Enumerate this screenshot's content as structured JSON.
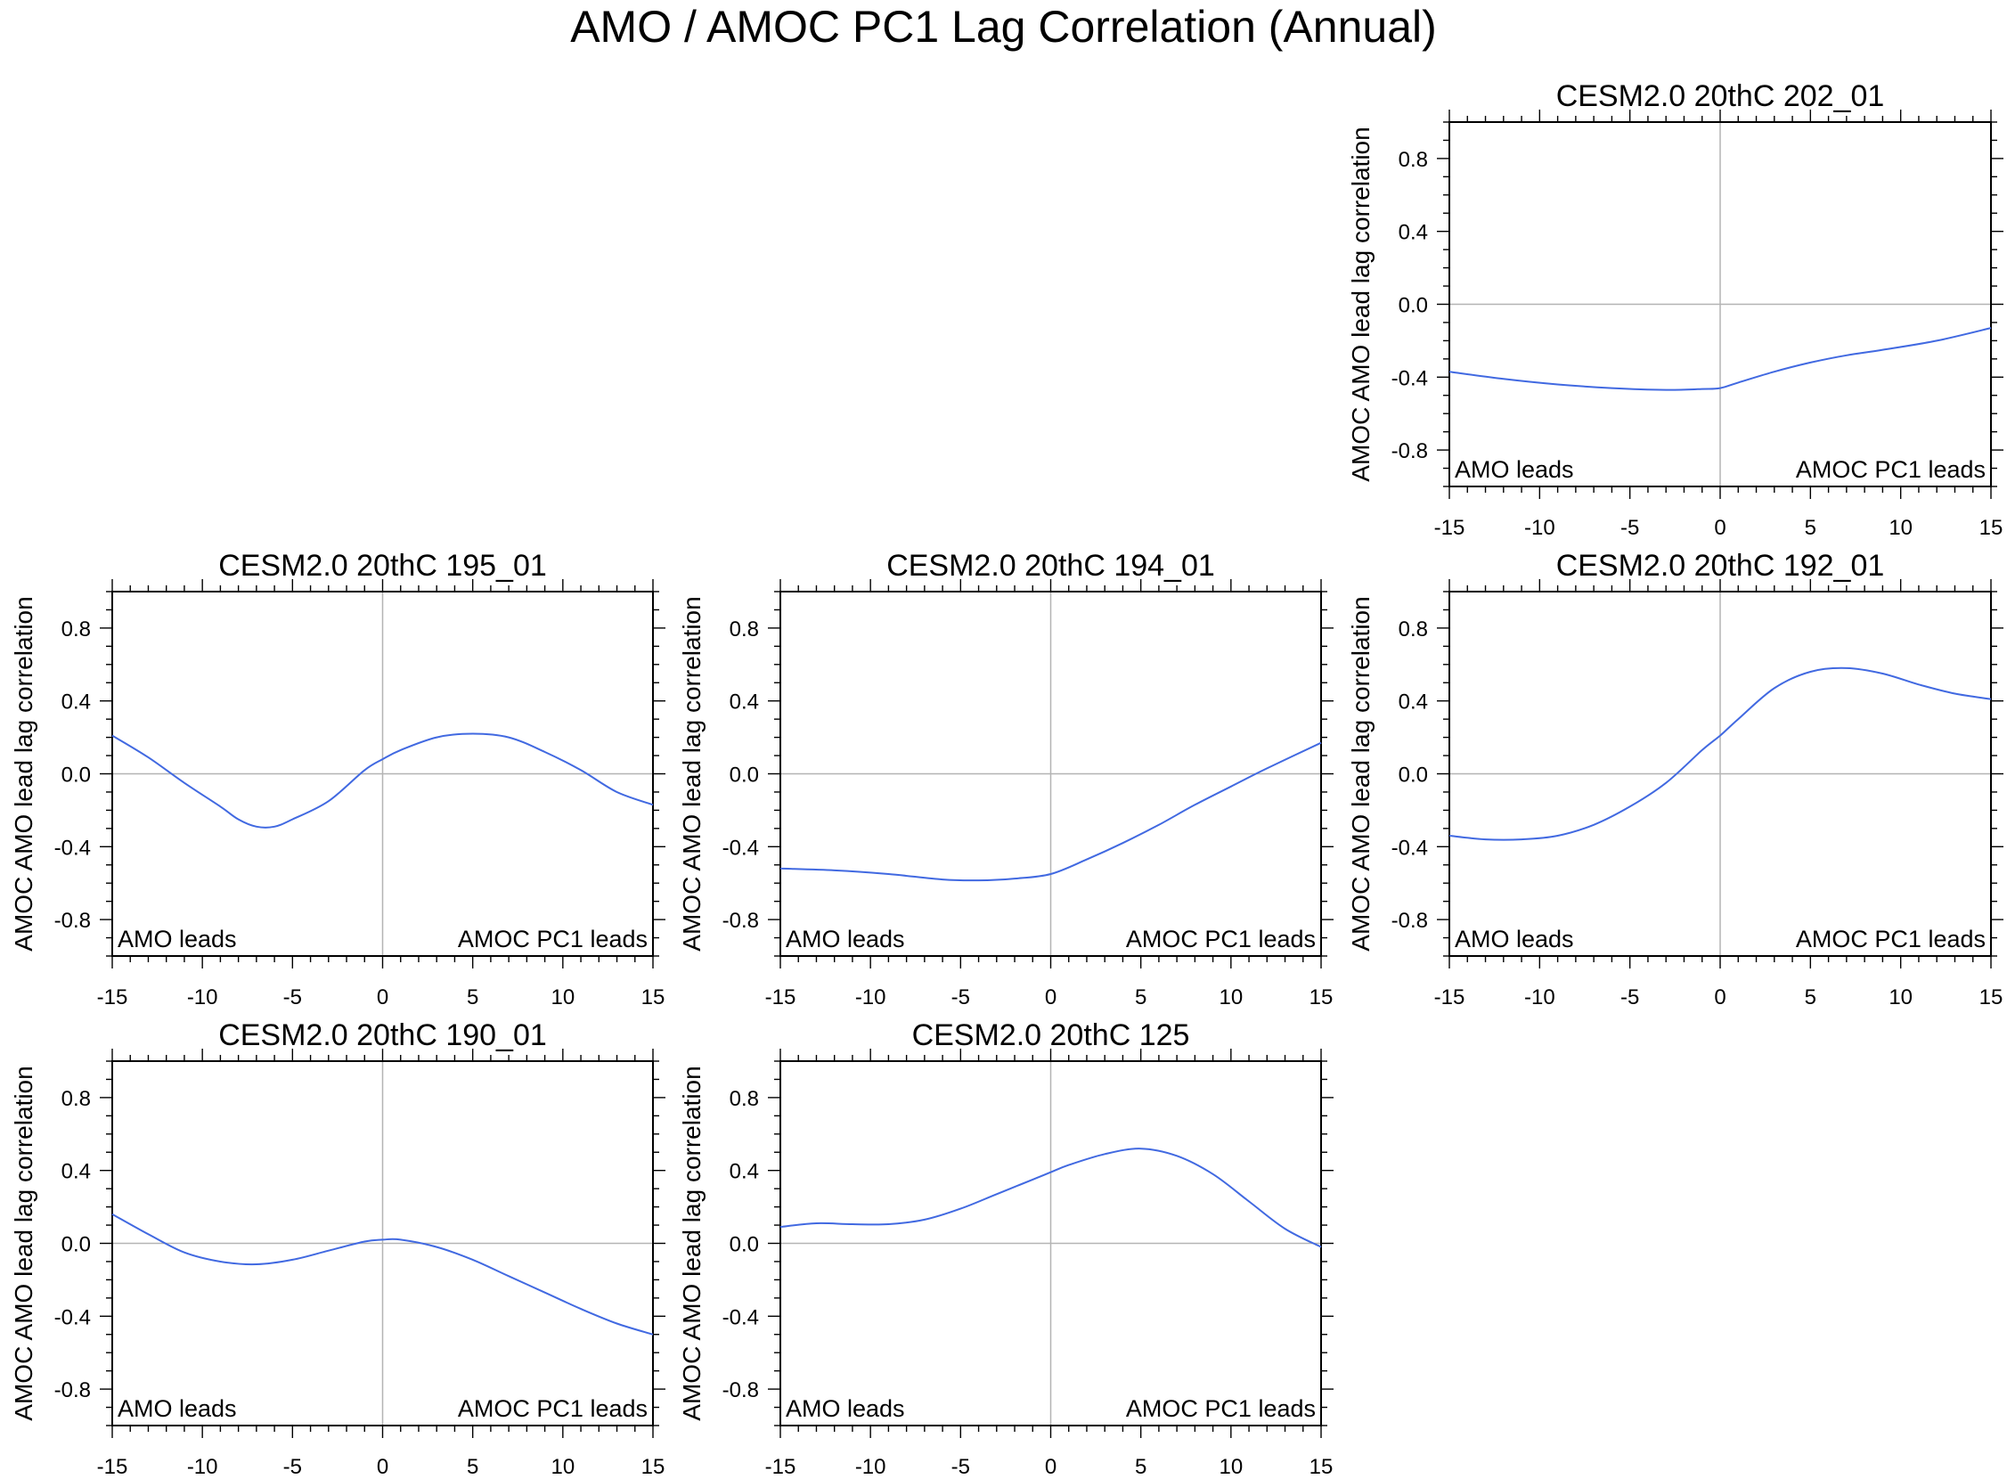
{
  "figure": {
    "title": "AMO / AMOC PC1 Lag Correlation (Annual)"
  },
  "colors": {
    "line": "#4169e1",
    "reference": "#b4b4b4",
    "frame": "#000000"
  },
  "chart_data": [
    {
      "type": "line",
      "title": "CESM2.0 20thC 202_01",
      "xlabel": "",
      "ylabel": "AMOC AMO lead lag correlation",
      "xlim": [
        -15,
        15
      ],
      "ylim": [
        -1,
        1
      ],
      "xticks": [
        "-15",
        "-10",
        "-5",
        "0",
        "5",
        "10",
        "15"
      ],
      "yticks": [
        "0.8",
        "0.4",
        "0.0",
        "-0.4",
        "-0.8"
      ],
      "annotation_left": "AMO leads",
      "annotation_right": "AMOC PC1 leads",
      "x": [
        -15,
        -12,
        -9,
        -6,
        -3,
        -1,
        0,
        1,
        3,
        5,
        7,
        9,
        12,
        15
      ],
      "values": [
        -0.37,
        -0.41,
        -0.44,
        -0.46,
        -0.47,
        -0.465,
        -0.46,
        -0.43,
        -0.37,
        -0.32,
        -0.28,
        -0.25,
        -0.2,
        -0.13
      ]
    },
    {
      "type": "line",
      "title": "CESM2.0 20thC 195_01",
      "xlabel": "",
      "ylabel": "AMOC AMO lead lag correlation",
      "xlim": [
        -15,
        15
      ],
      "ylim": [
        -1,
        1
      ],
      "xticks": [
        "-15",
        "-10",
        "-5",
        "0",
        "5",
        "10",
        "15"
      ],
      "yticks": [
        "0.8",
        "0.4",
        "0.0",
        "-0.4",
        "-0.8"
      ],
      "annotation_left": "AMO leads",
      "annotation_right": "AMOC PC1 leads",
      "x": [
        -15,
        -13,
        -11,
        -9,
        -8,
        -7,
        -6,
        -5,
        -3,
        -1,
        0,
        1,
        3,
        5,
        7,
        9,
        11,
        13,
        15
      ],
      "values": [
        0.21,
        0.09,
        -0.05,
        -0.18,
        -0.25,
        -0.29,
        -0.29,
        -0.25,
        -0.15,
        0.02,
        0.08,
        0.13,
        0.2,
        0.22,
        0.2,
        0.12,
        0.02,
        -0.1,
        -0.17
      ]
    },
    {
      "type": "line",
      "title": "CESM2.0 20thC 194_01",
      "xlabel": "",
      "ylabel": "AMOC AMO lead lag correlation",
      "xlim": [
        -15,
        15
      ],
      "ylim": [
        -1,
        1
      ],
      "xticks": [
        "-15",
        "-10",
        "-5",
        "0",
        "5",
        "10",
        "15"
      ],
      "yticks": [
        "0.8",
        "0.4",
        "0.0",
        "-0.4",
        "-0.8"
      ],
      "annotation_left": "AMO leads",
      "annotation_right": "AMOC PC1 leads",
      "x": [
        -15,
        -12,
        -9,
        -6,
        -4,
        -2,
        0,
        2,
        4,
        6,
        8,
        10,
        12,
        15
      ],
      "values": [
        -0.52,
        -0.53,
        -0.55,
        -0.58,
        -0.585,
        -0.575,
        -0.55,
        -0.47,
        -0.38,
        -0.28,
        -0.17,
        -0.07,
        0.03,
        0.17
      ]
    },
    {
      "type": "line",
      "title": "CESM2.0 20thC 192_01",
      "xlabel": "",
      "ylabel": "AMOC AMO lead lag correlation",
      "xlim": [
        -15,
        15
      ],
      "ylim": [
        -1,
        1
      ],
      "xticks": [
        "-15",
        "-10",
        "-5",
        "0",
        "5",
        "10",
        "15"
      ],
      "yticks": [
        "0.8",
        "0.4",
        "0.0",
        "-0.4",
        "-0.8"
      ],
      "annotation_left": "AMO leads",
      "annotation_right": "AMOC PC1 leads",
      "x": [
        -15,
        -13,
        -11,
        -9,
        -7,
        -5,
        -3,
        -1,
        0,
        1,
        3,
        5,
        7,
        9,
        11,
        13,
        15
      ],
      "values": [
        -0.34,
        -0.36,
        -0.36,
        -0.34,
        -0.28,
        -0.18,
        -0.05,
        0.13,
        0.21,
        0.3,
        0.47,
        0.56,
        0.58,
        0.55,
        0.49,
        0.44,
        0.41
      ]
    },
    {
      "type": "line",
      "title": "CESM2.0 20thC 190_01",
      "xlabel": "",
      "ylabel": "AMOC AMO lead lag correlation",
      "xlim": [
        -15,
        15
      ],
      "ylim": [
        -1,
        1
      ],
      "xticks": [
        "-15",
        "-10",
        "-5",
        "0",
        "5",
        "10",
        "15"
      ],
      "yticks": [
        "0.8",
        "0.4",
        "0.0",
        "-0.4",
        "-0.8"
      ],
      "annotation_left": "AMO leads",
      "annotation_right": "AMOC PC1 leads",
      "x": [
        -15,
        -13,
        -11,
        -9,
        -7,
        -5,
        -3,
        -1,
        0,
        1,
        3,
        5,
        7,
        9,
        11,
        13,
        15
      ],
      "values": [
        0.16,
        0.05,
        -0.05,
        -0.1,
        -0.115,
        -0.09,
        -0.04,
        0.01,
        0.02,
        0.02,
        -0.02,
        -0.09,
        -0.18,
        -0.27,
        -0.36,
        -0.44,
        -0.5
      ]
    },
    {
      "type": "line",
      "title": "CESM2.0 20thC 125",
      "xlabel": "",
      "ylabel": "AMOC AMO lead lag correlation",
      "xlim": [
        -15,
        15
      ],
      "ylim": [
        -1,
        1
      ],
      "xticks": [
        "-15",
        "-10",
        "-5",
        "0",
        "5",
        "10",
        "15"
      ],
      "yticks": [
        "0.8",
        "0.4",
        "0.0",
        "-0.4",
        "-0.8"
      ],
      "annotation_left": "AMO leads",
      "annotation_right": "AMOC PC1 leads",
      "x": [
        -15,
        -13,
        -11,
        -9,
        -7,
        -5,
        -3,
        -1,
        0,
        1,
        3,
        5,
        7,
        9,
        11,
        13,
        15
      ],
      "values": [
        0.09,
        0.11,
        0.105,
        0.105,
        0.13,
        0.19,
        0.27,
        0.35,
        0.39,
        0.43,
        0.49,
        0.52,
        0.48,
        0.38,
        0.23,
        0.08,
        -0.02
      ]
    }
  ]
}
